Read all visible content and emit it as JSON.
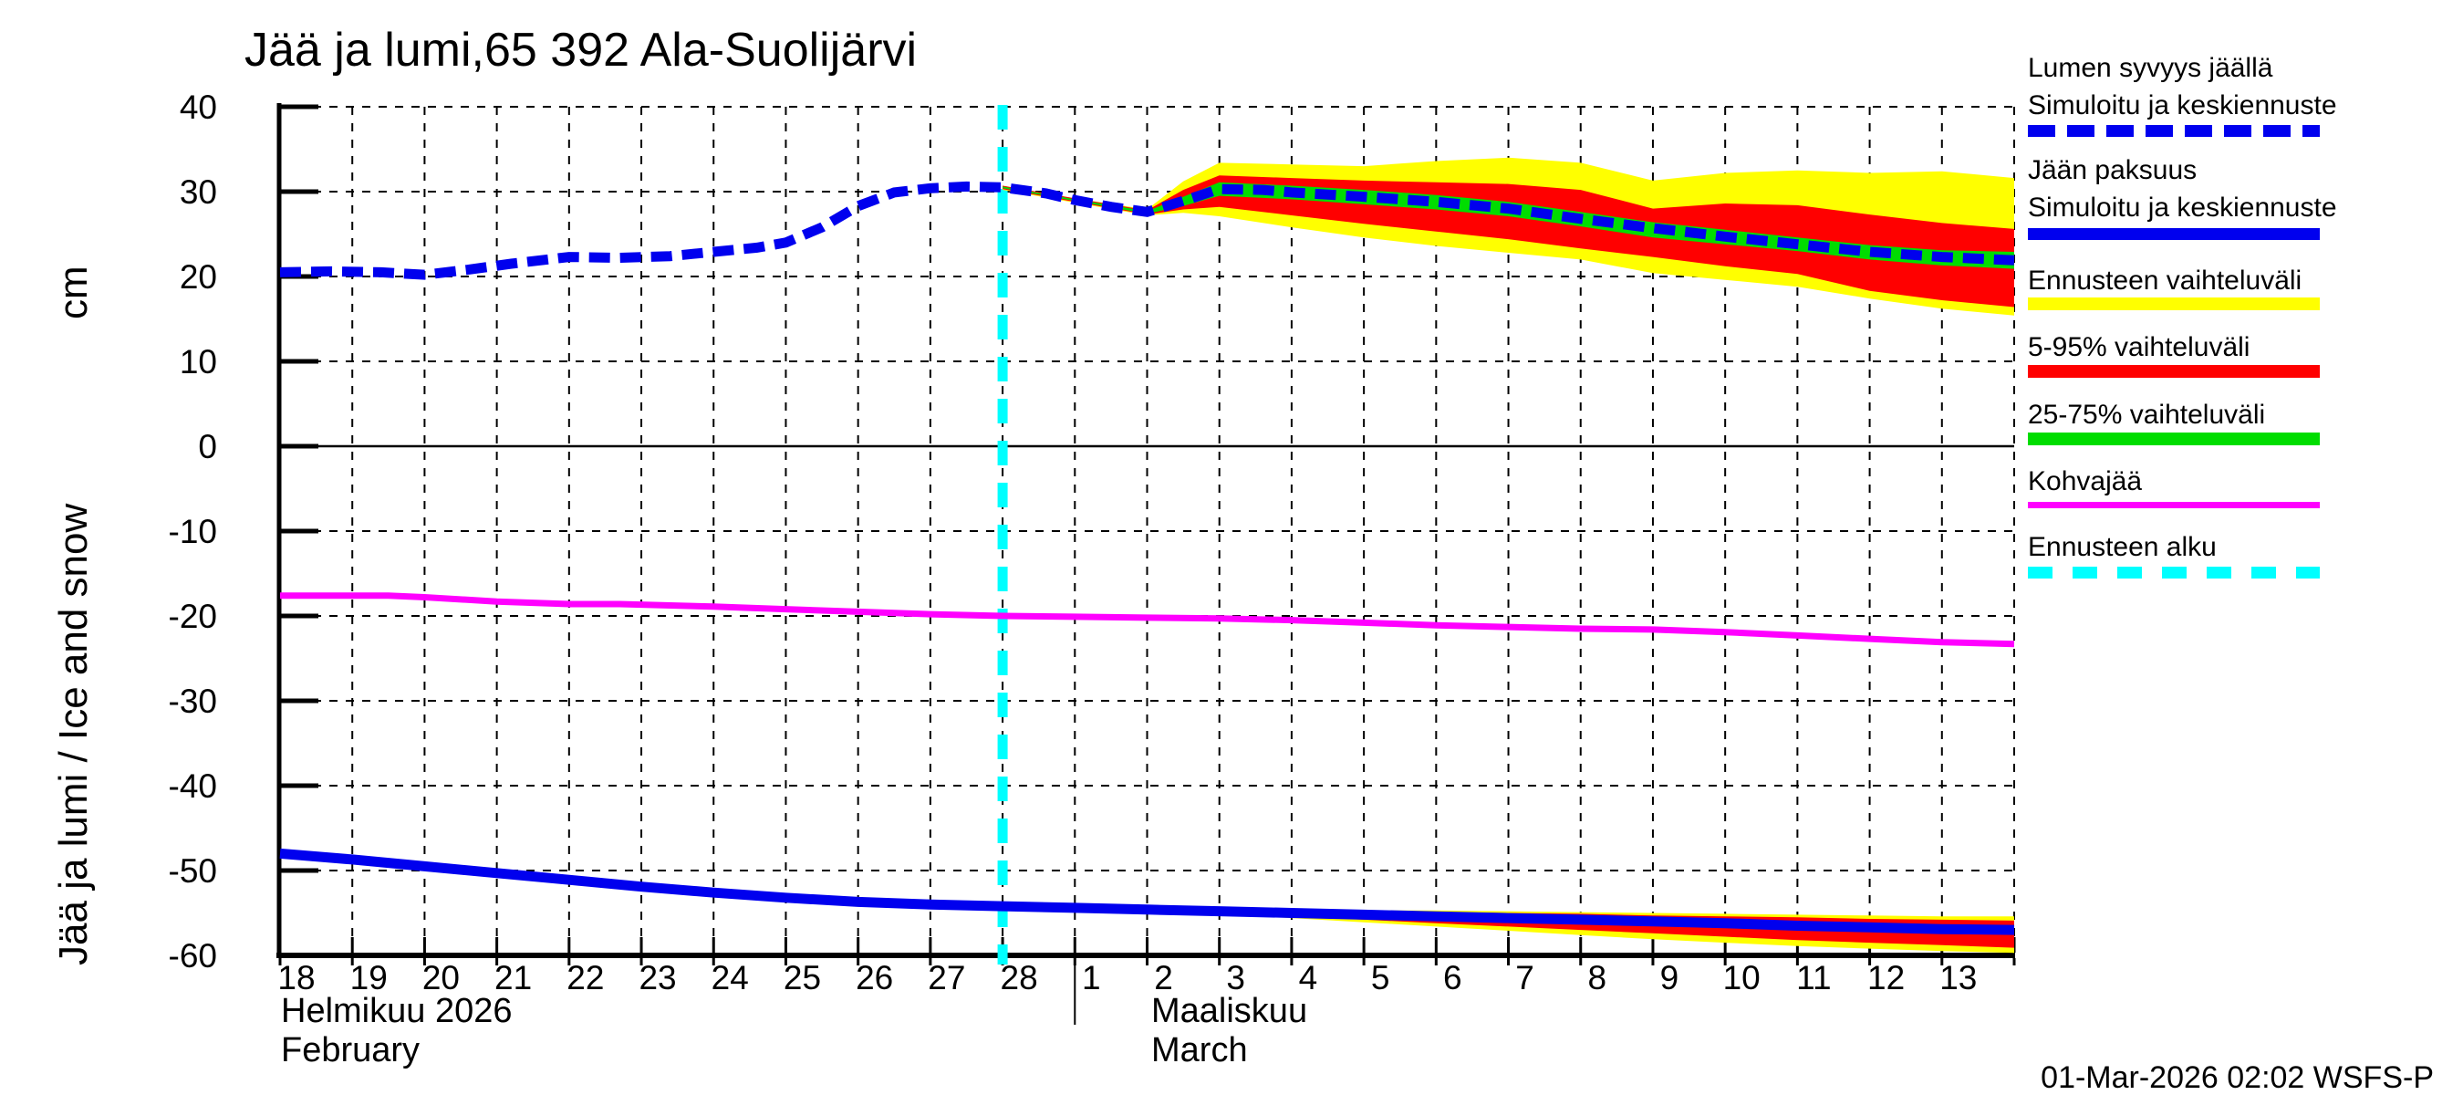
{
  "title": "Jää ja lumi,65 392 Ala-Suolijärvi",
  "footer": {
    "timestamp": "01-Mar-2026 02:02 WSFS-P"
  },
  "axes": {
    "y_label": "Jää ja lumi / Ice and snow",
    "y_unit": "cm",
    "months": [
      {
        "fi": "Helmikuu 2026",
        "en": "February"
      },
      {
        "fi": "Maaliskuu",
        "en": "March"
      }
    ]
  },
  "legend": [
    {
      "lines": [
        "Lumen syvyys jäällä",
        "Simuloitu ja keskiennuste"
      ],
      "color": "#0000ee",
      "style": "dashed",
      "height": 13
    },
    {
      "lines": [
        "Jään paksuus",
        "Simuloitu ja keskiennuste"
      ],
      "color": "#0000ee",
      "style": "solid",
      "height": 13
    },
    {
      "lines": [
        "Ennusteen vaihteluväli"
      ],
      "color": "#ffff00",
      "style": "solid",
      "height": 14
    },
    {
      "lines": [
        "5-95% vaihteluväli"
      ],
      "color": "#ff0000",
      "style": "solid",
      "height": 14
    },
    {
      "lines": [
        "25-75% vaihteluväli"
      ],
      "color": "#00dd00",
      "style": "solid",
      "height": 14
    },
    {
      "lines": [
        "Kohvajää"
      ],
      "color": "#ff00ff",
      "style": "solid",
      "height": 7
    },
    {
      "lines": [
        "Ennusteen alku"
      ],
      "color": "#00ffff",
      "style": "dashed",
      "height": 13
    }
  ],
  "chart_data": {
    "type": "line",
    "title": "Jää ja lumi,65 392 Ala-Suolijärvi",
    "ylabel": "Jää ja lumi / Ice and snow (cm)",
    "ylim": [
      -60,
      40
    ],
    "y_ticks": [
      40,
      30,
      20,
      10,
      0,
      -10,
      -20,
      -30,
      -40,
      -50,
      -60
    ],
    "x_span_days": 24,
    "forecast_start_t": 10,
    "month_separator_t": 11,
    "days": [
      {
        "label": "18",
        "t": 0
      },
      {
        "label": "19",
        "t": 1
      },
      {
        "label": "20",
        "t": 2
      },
      {
        "label": "21",
        "t": 3
      },
      {
        "label": "22",
        "t": 4
      },
      {
        "label": "23",
        "t": 5
      },
      {
        "label": "24",
        "t": 6
      },
      {
        "label": "25",
        "t": 7
      },
      {
        "label": "26",
        "t": 8
      },
      {
        "label": "27",
        "t": 9
      },
      {
        "label": "28",
        "t": 10
      },
      {
        "label": "1",
        "t": 11
      },
      {
        "label": "2",
        "t": 12
      },
      {
        "label": "3",
        "t": 13
      },
      {
        "label": "4",
        "t": 14
      },
      {
        "label": "5",
        "t": 15
      },
      {
        "label": "6",
        "t": 16
      },
      {
        "label": "7",
        "t": 17
      },
      {
        "label": "8",
        "t": 18
      },
      {
        "label": "9",
        "t": 19
      },
      {
        "label": "10",
        "t": 20
      },
      {
        "label": "11",
        "t": 21
      },
      {
        "label": "12",
        "t": 22
      },
      {
        "label": "13",
        "t": 23
      }
    ],
    "series": {
      "snow_depth_center": {
        "x": [
          0,
          0.7,
          1.4,
          2,
          2.6,
          3.2,
          4,
          4.7,
          5.4,
          6,
          6.6,
          7,
          7.5,
          8,
          8.5,
          9,
          9.5,
          10,
          10.6,
          11,
          11.5,
          12,
          12.5,
          13,
          13.6,
          14,
          15,
          16,
          17,
          18,
          19,
          20,
          21,
          22,
          23,
          24
        ],
        "v": [
          20.5,
          20.6,
          20.5,
          20.2,
          20.8,
          21.5,
          22.3,
          22.2,
          22.4,
          22.9,
          23.4,
          24.0,
          25.8,
          28.3,
          29.9,
          30.4,
          30.6,
          30.5,
          29.8,
          29.0,
          28.2,
          27.6,
          28.9,
          30.3,
          30.2,
          29.9,
          29.4,
          28.8,
          28.0,
          26.8,
          25.7,
          24.7,
          23.8,
          22.9,
          22.3,
          21.9
        ]
      },
      "snow_band": {
        "x": [
          10,
          11,
          12,
          12.5,
          13,
          14,
          15,
          16,
          17,
          18,
          19,
          20,
          21,
          22,
          23,
          24
        ],
        "yellow_hi": [
          30.7,
          29.2,
          27.9,
          31.2,
          33.4,
          33.2,
          33.0,
          33.6,
          34.0,
          33.4,
          31.3,
          32.2,
          32.5,
          32.2,
          32.4,
          31.6
        ],
        "yellow_lo": [
          30.2,
          28.7,
          27.2,
          27.5,
          27.1,
          25.8,
          24.6,
          23.6,
          22.8,
          22.0,
          20.4,
          19.6,
          18.8,
          17.4,
          16.2,
          15.4
        ],
        "red_hi": [
          30.7,
          29.2,
          27.8,
          30.2,
          31.9,
          31.6,
          31.3,
          31.1,
          30.9,
          30.2,
          28.0,
          28.6,
          28.4,
          27.3,
          26.3,
          25.6
        ],
        "red_lo": [
          30.3,
          28.8,
          27.3,
          27.9,
          28.2,
          27.2,
          26.2,
          25.3,
          24.4,
          23.3,
          22.3,
          21.2,
          20.3,
          18.3,
          17.2,
          16.4
        ],
        "green_hi": [
          30.6,
          29.1,
          27.7,
          29.4,
          31.1,
          30.7,
          30.2,
          29.6,
          28.8,
          27.6,
          26.4,
          25.5,
          24.6,
          23.7,
          23.1,
          22.9
        ],
        "green_lo": [
          30.4,
          28.9,
          27.4,
          28.3,
          29.5,
          29.1,
          28.5,
          27.9,
          27.1,
          25.9,
          24.6,
          23.8,
          23.0,
          22.0,
          21.3,
          20.9
        ]
      },
      "ice_thickness_center": {
        "x": [
          0,
          1,
          2,
          3,
          4,
          5,
          6,
          7,
          8,
          9,
          10,
          11,
          12,
          13,
          14,
          15,
          16,
          17,
          18,
          19,
          20,
          21,
          22,
          23,
          24
        ],
        "v": [
          -48.0,
          -48.7,
          -49.5,
          -50.3,
          -51.1,
          -51.9,
          -52.6,
          -53.2,
          -53.7,
          -54.0,
          -54.2,
          -54.4,
          -54.6,
          -54.8,
          -55.0,
          -55.2,
          -55.4,
          -55.6,
          -55.8,
          -56.0,
          -56.2,
          -56.5,
          -56.7,
          -56.9,
          -57.0
        ]
      },
      "ice_band": {
        "x": [
          13,
          14,
          15,
          16,
          17,
          18,
          19,
          20,
          21,
          22,
          23,
          24
        ],
        "yellow_hi": [
          -54.5,
          -54.6,
          -54.7,
          -54.7,
          -54.8,
          -54.9,
          -55.0,
          -55.1,
          -55.2,
          -55.3,
          -55.4,
          -55.4
        ],
        "yellow_lo": [
          -55.1,
          -55.6,
          -56.1,
          -56.6,
          -57.1,
          -57.6,
          -58.1,
          -58.5,
          -58.9,
          -59.2,
          -59.5,
          -59.7
        ],
        "red_hi": [
          -54.6,
          -54.7,
          -54.8,
          -54.9,
          -55.0,
          -55.1,
          -55.3,
          -55.4,
          -55.5,
          -55.7,
          -55.8,
          -55.9
        ],
        "red_lo": [
          -55.0,
          -55.4,
          -55.8,
          -56.2,
          -56.6,
          -57.0,
          -57.4,
          -57.8,
          -58.2,
          -58.5,
          -58.8,
          -59.1
        ]
      },
      "kohvajaa": {
        "x": [
          0,
          1,
          1.5,
          2,
          3,
          4,
          4.7,
          6,
          7,
          8,
          9,
          10,
          11,
          12,
          13,
          14,
          15,
          16,
          17,
          18,
          19,
          20,
          21,
          22,
          23,
          24
        ],
        "v": [
          -17.6,
          -17.6,
          -17.6,
          -17.8,
          -18.3,
          -18.6,
          -18.6,
          -18.9,
          -19.2,
          -19.5,
          -19.8,
          -20.0,
          -20.1,
          -20.2,
          -20.3,
          -20.5,
          -20.8,
          -21.1,
          -21.3,
          -21.5,
          -21.6,
          -21.9,
          -22.3,
          -22.7,
          -23.1,
          -23.3
        ]
      }
    },
    "colors": {
      "blue": "#0000ee",
      "yellow": "#ffff00",
      "red": "#ff0000",
      "green": "#00dd00",
      "magenta": "#ff00ff",
      "cyan": "#00ffff",
      "axis": "#000000"
    },
    "legend_position": "right",
    "grid": true
  }
}
